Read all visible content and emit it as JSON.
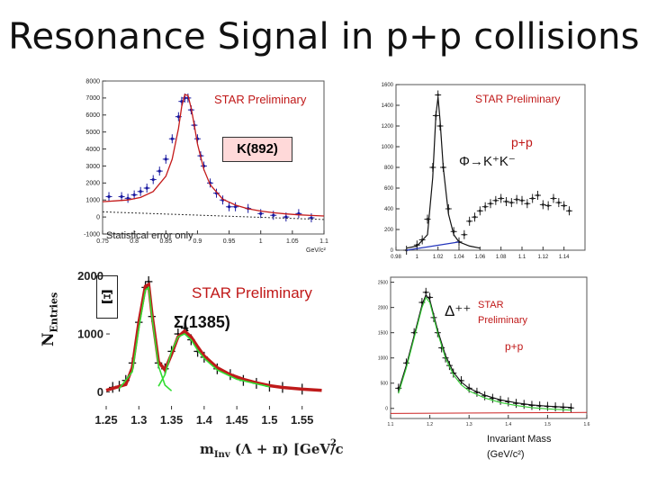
{
  "slide_title": "Resonance Signal in p+p collisions",
  "chart_data": [
    {
      "id": "k892",
      "type": "line",
      "title": "STAR Preliminary",
      "label": "K(892)",
      "note": "Statistical error only",
      "xlabel": "GeV/c²",
      "x_unit": "GeV/c",
      "x_unit_sup": "2",
      "ylabel": "",
      "xlim": [
        0.75,
        1.1
      ],
      "ylim": [
        -1000,
        8000
      ],
      "xticks": [
        0.75,
        0.8,
        0.85,
        0.9,
        0.95,
        1,
        1.05,
        1.1
      ],
      "yticks": [
        -1000,
        0,
        1000,
        2000,
        3000,
        4000,
        5000,
        6000,
        7000,
        8000
      ],
      "series": [
        {
          "name": "data",
          "x": [
            0.76,
            0.78,
            0.79,
            0.8,
            0.81,
            0.82,
            0.83,
            0.84,
            0.85,
            0.86,
            0.87,
            0.875,
            0.88,
            0.885,
            0.89,
            0.895,
            0.9,
            0.905,
            0.91,
            0.92,
            0.93,
            0.94,
            0.95,
            0.96,
            0.98,
            1.0,
            1.02,
            1.04,
            1.06,
            1.08
          ],
          "values": [
            1200,
            1200,
            1100,
            1300,
            1500,
            1700,
            2200,
            2700,
            3400,
            4600,
            5900,
            6800,
            7000,
            7000,
            6300,
            5400,
            4600,
            3600,
            3000,
            2000,
            1400,
            1000,
            600,
            600,
            500,
            200,
            100,
            0,
            200,
            -50
          ]
        },
        {
          "name": "fit",
          "x": [
            0.75,
            0.77,
            0.79,
            0.81,
            0.83,
            0.85,
            0.86,
            0.87,
            0.875,
            0.88,
            0.885,
            0.89,
            0.895,
            0.9,
            0.91,
            0.92,
            0.94,
            0.96,
            0.98,
            1.0,
            1.02,
            1.04,
            1.06,
            1.08,
            1.1
          ],
          "values": [
            900,
            950,
            1000,
            1150,
            1500,
            2400,
            3400,
            5200,
            6500,
            7200,
            7150,
            6400,
            5400,
            4300,
            2800,
            1900,
            1050,
            700,
            480,
            350,
            250,
            180,
            130,
            90,
            60
          ]
        },
        {
          "name": "background",
          "x": [
            0.75,
            1.1
          ],
          "values": [
            300,
            -150
          ]
        }
      ]
    },
    {
      "id": "phi",
      "type": "line",
      "title": "STAR Preliminary",
      "label_phi": "Φ",
      "label_decay": "K⁺K⁻",
      "label_system": "p+p",
      "xlim": [
        0.98,
        1.16
      ],
      "ylim": [
        0,
        1600
      ],
      "xticks": [
        0.98,
        1,
        1.02,
        1.04,
        1.06,
        1.08,
        1.1,
        1.12,
        1.14
      ],
      "yticks": [
        0,
        200,
        400,
        600,
        800,
        1000,
        1200,
        1400,
        1600
      ],
      "series": [
        {
          "name": "data",
          "x": [
            0.99,
            1.0,
            1.005,
            1.01,
            1.015,
            1.018,
            1.02,
            1.022,
            1.025,
            1.03,
            1.035,
            1.04,
            1.045,
            1.05,
            1.055,
            1.06,
            1.065,
            1.07,
            1.075,
            1.08,
            1.085,
            1.09,
            1.095,
            1.1,
            1.105,
            1.11,
            1.115,
            1.12,
            1.125,
            1.13,
            1.135,
            1.14,
            1.145
          ],
          "values": [
            0,
            50,
            100,
            300,
            800,
            1300,
            1500,
            1200,
            800,
            400,
            180,
            80,
            150,
            280,
            320,
            380,
            420,
            450,
            480,
            500,
            470,
            460,
            490,
            480,
            450,
            500,
            530,
            440,
            430,
            500,
            460,
            430,
            380
          ]
        },
        {
          "name": "fit",
          "x": [
            0.99,
            1.0,
            1.01,
            1.015,
            1.018,
            1.02,
            1.022,
            1.025,
            1.03,
            1.035,
            1.04,
            1.05,
            1.06
          ],
          "values": [
            20,
            40,
            150,
            700,
            1300,
            1480,
            1250,
            800,
            350,
            150,
            80,
            40,
            20
          ]
        },
        {
          "name": "background",
          "x": [
            0.99,
            1.04
          ],
          "values": [
            0,
            80
          ]
        }
      ]
    },
    {
      "id": "sigma1385",
      "type": "line",
      "title": "STAR Preliminary",
      "label": "Σ(1385)",
      "side_label": "Ξ",
      "ylabel": "N",
      "ylabel_sub": "Entries",
      "xlabel_m": "m",
      "xlabel_sub": "Inv",
      "xlabel_rest": "(Λ + π)  [GeV/c",
      "xlabel_sup": "2",
      "xlim": [
        1.25,
        1.6
      ],
      "ylim": [
        -300,
        2100
      ],
      "xticks": [
        1.25,
        1.3,
        1.35,
        1.4,
        1.45,
        1.5,
        1.55
      ],
      "xtick_labels": [
        "1.25",
        "1.3",
        "1.35",
        "1.4",
        "1.45",
        "1.5",
        "1.55"
      ],
      "yticks": [
        0,
        1000,
        2000
      ],
      "series": [
        {
          "name": "data",
          "x": [
            1.26,
            1.27,
            1.28,
            1.29,
            1.3,
            1.31,
            1.315,
            1.32,
            1.33,
            1.34,
            1.35,
            1.36,
            1.37,
            1.38,
            1.39,
            1.4,
            1.42,
            1.44,
            1.46,
            1.48,
            1.5,
            1.52,
            1.55
          ],
          "values": [
            80,
            100,
            200,
            500,
            1200,
            1800,
            1900,
            1300,
            500,
            400,
            700,
            1000,
            1100,
            900,
            700,
            600,
            400,
            300,
            200,
            150,
            100,
            80,
            50
          ]
        },
        {
          "name": "fit",
          "x": [
            1.25,
            1.28,
            1.29,
            1.3,
            1.31,
            1.315,
            1.32,
            1.33,
            1.34,
            1.35,
            1.36,
            1.37,
            1.38,
            1.39,
            1.4,
            1.42,
            1.44,
            1.46,
            1.48,
            1.5,
            1.52,
            1.55,
            1.58
          ],
          "values": [
            30,
            130,
            420,
            1200,
            1820,
            1850,
            1350,
            520,
            380,
            650,
            950,
            1050,
            950,
            780,
            620,
            420,
            300,
            220,
            160,
            110,
            80,
            50,
            30
          ]
        },
        {
          "name": "component",
          "x": [
            1.27,
            1.29,
            1.3,
            1.31,
            1.315,
            1.32,
            1.33,
            1.34,
            1.35
          ],
          "values": [
            60,
            350,
            1100,
            1750,
            1800,
            1300,
            450,
            120,
            20
          ]
        },
        {
          "name": "component2",
          "x": [
            1.33,
            1.34,
            1.35,
            1.36,
            1.37,
            1.38,
            1.39,
            1.4,
            1.42,
            1.45,
            1.5
          ],
          "values": [
            100,
            300,
            700,
            950,
            1000,
            900,
            720,
            580,
            380,
            220,
            90
          ]
        }
      ]
    },
    {
      "id": "delta",
      "type": "line",
      "label": "Δ⁺⁺",
      "title": "STAR Preliminary",
      "system": "p+p",
      "xlabel": "Invariant Mass",
      "xunit": "(GeV/c²)",
      "xlim": [
        1.1,
        1.6
      ],
      "ylim": [
        -200,
        2600
      ],
      "xticks": [
        1.1,
        1.2,
        1.3,
        1.4,
        1.5,
        1.6
      ],
      "yticks": [
        0,
        500,
        1000,
        1500,
        2000,
        2500
      ],
      "series": [
        {
          "name": "data",
          "x": [
            1.12,
            1.14,
            1.16,
            1.18,
            1.19,
            1.2,
            1.21,
            1.22,
            1.23,
            1.24,
            1.25,
            1.26,
            1.28,
            1.3,
            1.32,
            1.34,
            1.36,
            1.38,
            1.4,
            1.42,
            1.44,
            1.46,
            1.48,
            1.5,
            1.52,
            1.54,
            1.56
          ],
          "values": [
            400,
            900,
            1500,
            2100,
            2300,
            2200,
            1800,
            1500,
            1200,
            1000,
            850,
            700,
            550,
            400,
            320,
            250,
            200,
            160,
            130,
            100,
            80,
            60,
            50,
            40,
            30,
            20,
            10
          ]
        },
        {
          "name": "fit",
          "x": [
            1.12,
            1.14,
            1.16,
            1.18,
            1.19,
            1.2,
            1.22,
            1.24,
            1.26,
            1.28,
            1.3,
            1.34,
            1.38,
            1.42,
            1.46,
            1.5,
            1.56
          ],
          "values": [
            350,
            850,
            1450,
            2050,
            2250,
            2150,
            1550,
            1050,
            720,
            520,
            400,
            260,
            170,
            110,
            70,
            45,
            20
          ]
        },
        {
          "name": "background",
          "x": [
            1.1,
            1.6
          ],
          "values": [
            -100,
            -80
          ]
        }
      ]
    }
  ]
}
